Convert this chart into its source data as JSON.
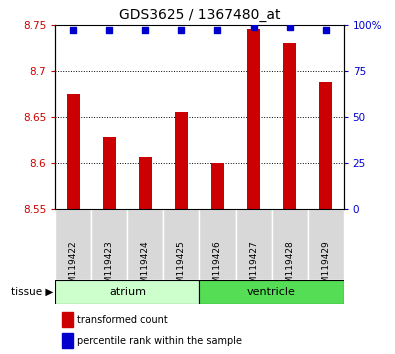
{
  "title": "GDS3625 / 1367480_at",
  "samples": [
    "GSM119422",
    "GSM119423",
    "GSM119424",
    "GSM119425",
    "GSM119426",
    "GSM119427",
    "GSM119428",
    "GSM119429"
  ],
  "red_values": [
    8.675,
    8.628,
    8.606,
    8.655,
    8.6,
    8.745,
    8.73,
    8.688
  ],
  "blue_values": [
    97,
    97,
    97,
    97,
    97,
    99,
    99,
    97
  ],
  "ymin": 8.55,
  "ymax": 8.75,
  "yticks": [
    8.55,
    8.6,
    8.65,
    8.7,
    8.75
  ],
  "ytick_labels": [
    "8.55",
    "8.6",
    "8.65",
    "8.7",
    "8.75"
  ],
  "right_yticks": [
    0,
    25,
    50,
    75,
    100
  ],
  "right_ytick_labels": [
    "0",
    "25",
    "50",
    "75",
    "100%"
  ],
  "atrium_color": "#ccffcc",
  "ventricle_color": "#55dd55",
  "bar_color": "#cc0000",
  "dot_color": "#0000cc",
  "bg_color": "#ffffff",
  "tick_color_left": "#cc0000",
  "tick_color_right": "#0000cc",
  "bar_width": 0.35,
  "legend_red": "transformed count",
  "legend_blue": "percentile rank within the sample",
  "tissue_label": "tissue"
}
